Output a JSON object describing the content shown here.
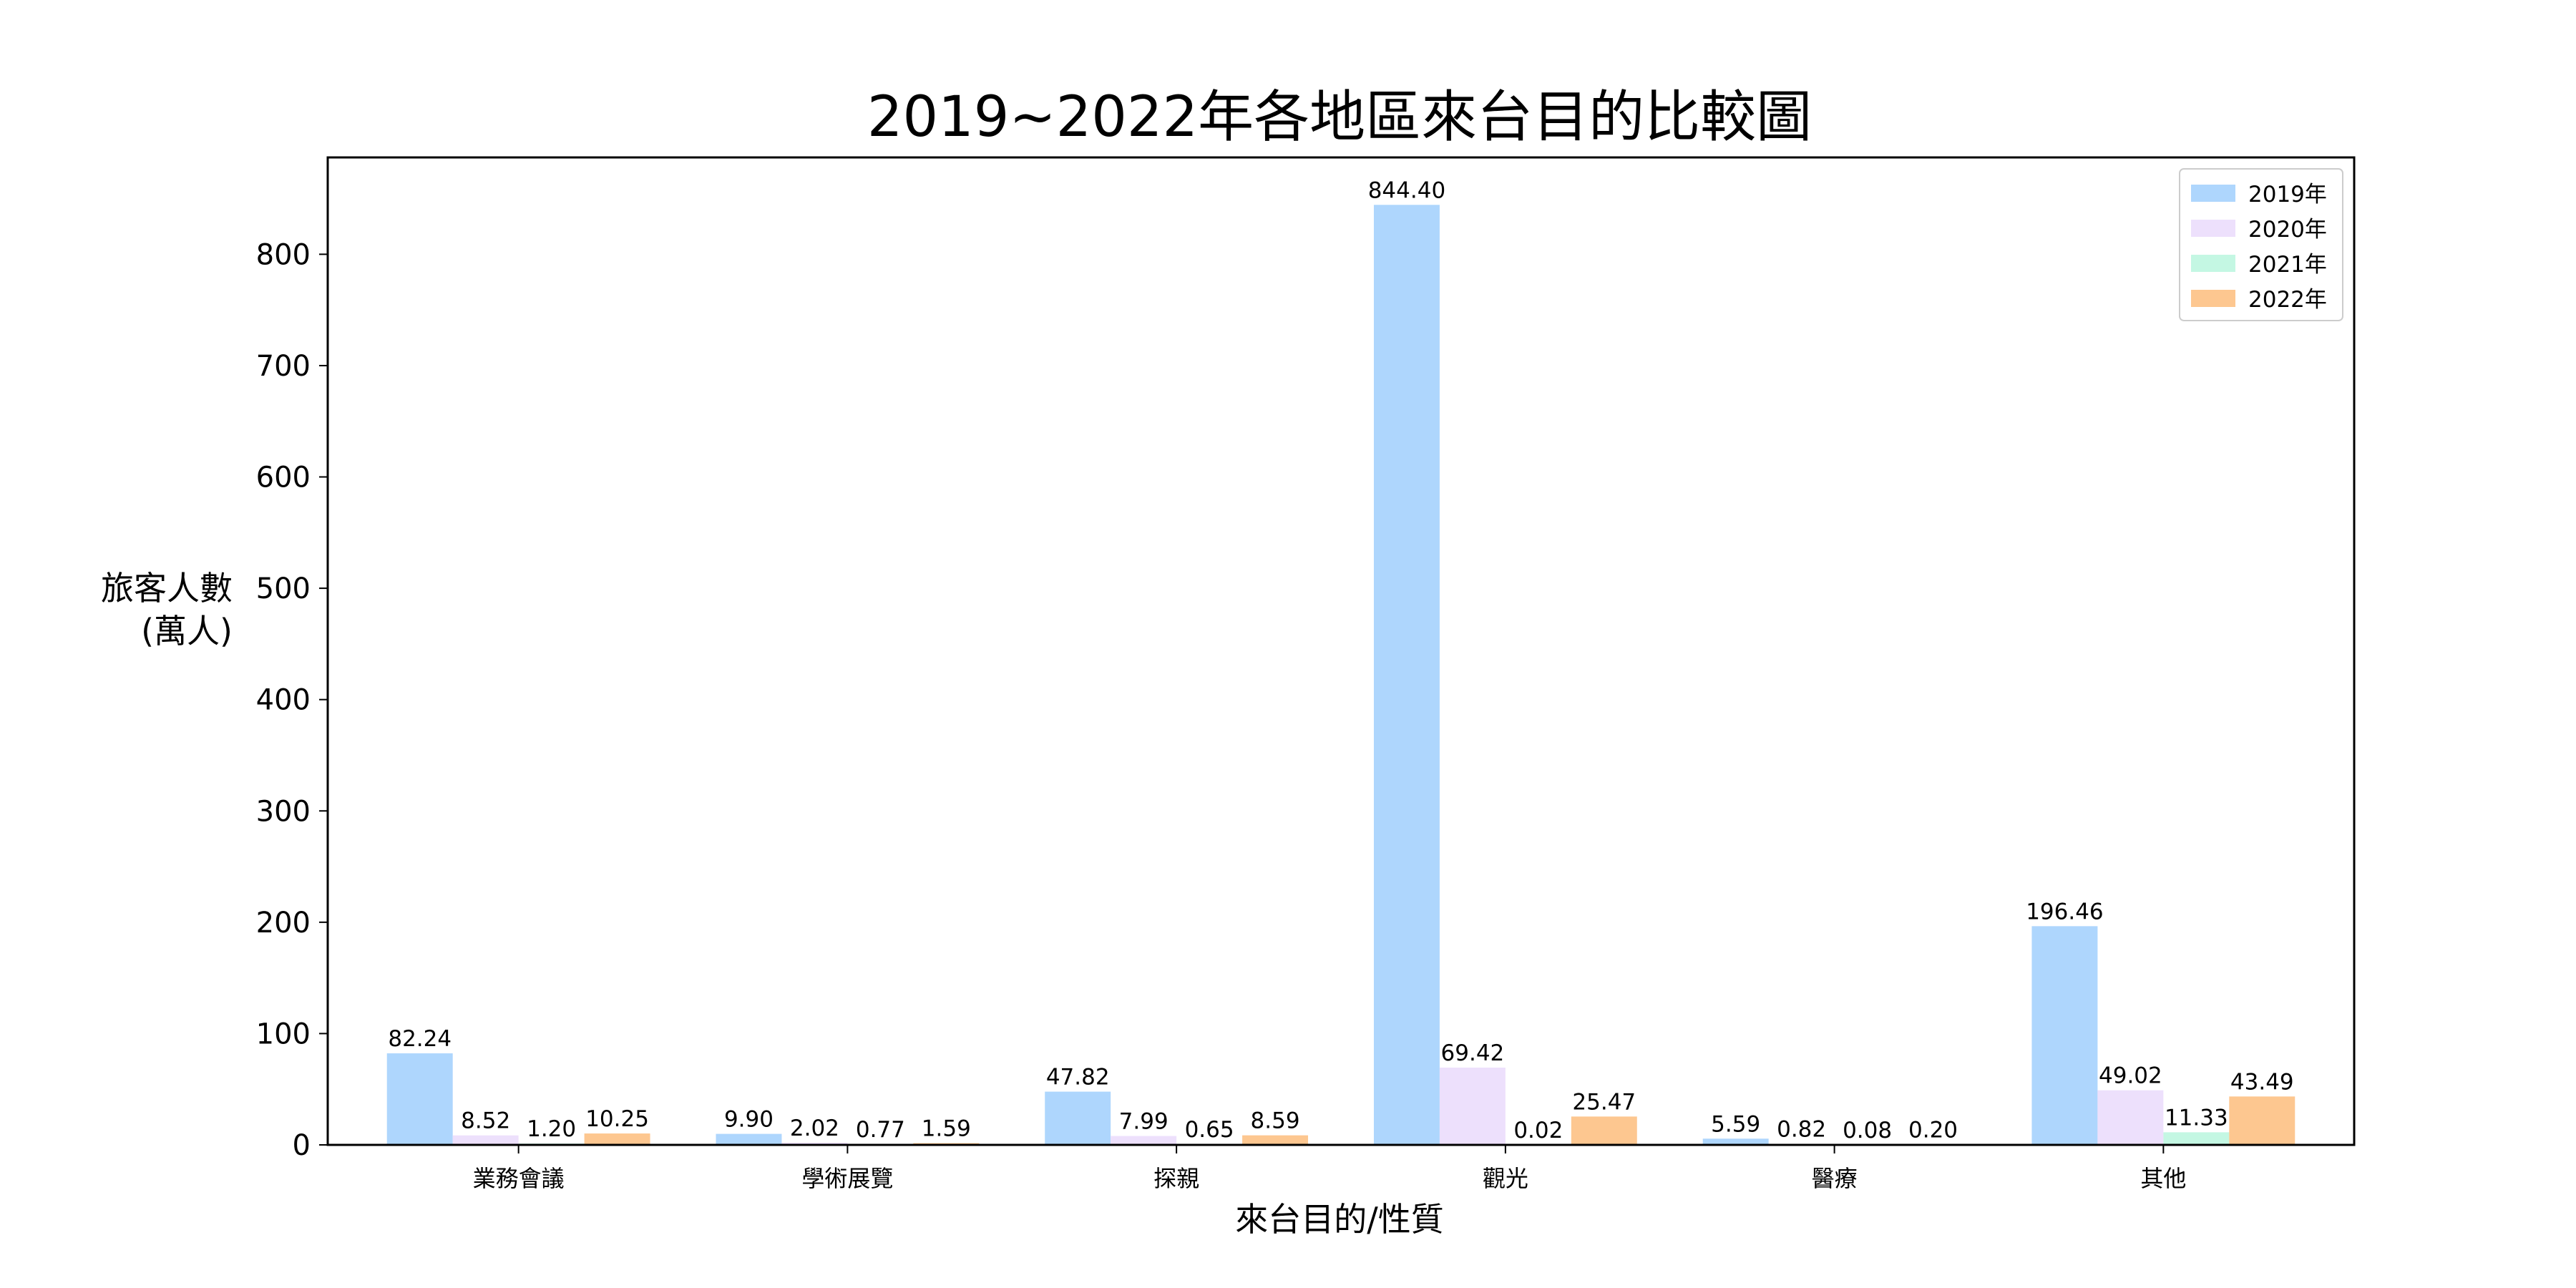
{
  "chart_data": {
    "type": "bar",
    "title": "2019~2022年各地區來台目的比較圖",
    "xlabel": "來台目的/性質",
    "ylabel_lines": [
      "旅客人數",
      "(萬人)"
    ],
    "categories": [
      "業務會議",
      "學術展覽",
      "探親",
      "觀光",
      "醫療",
      "其他"
    ],
    "series": [
      {
        "name": "2019年",
        "color": "#aed6fd",
        "values": [
          82.24,
          9.9,
          47.82,
          844.4,
          5.59,
          196.46
        ]
      },
      {
        "name": "2020年",
        "color": "#ede0fc",
        "values": [
          8.52,
          2.02,
          7.99,
          69.42,
          0.82,
          49.02
        ]
      },
      {
        "name": "2021年",
        "color": "#c4f7e3",
        "values": [
          1.2,
          0.77,
          0.65,
          0.02,
          0.08,
          11.33
        ]
      },
      {
        "name": "2022年",
        "color": "#fdc790",
        "values": [
          10.25,
          1.59,
          8.59,
          25.47,
          0.2,
          43.49
        ]
      }
    ],
    "ylim": [
      0,
      887
    ],
    "yticks": [
      0,
      100,
      200,
      300,
      400,
      500,
      600,
      700,
      800
    ],
    "grid": false,
    "legend_position": "top-right",
    "value_decimals": 2
  }
}
